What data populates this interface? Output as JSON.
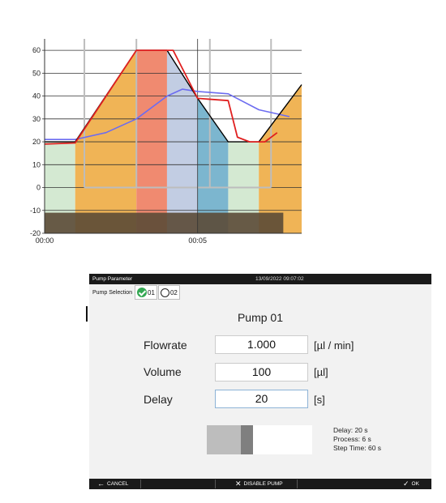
{
  "chart_data": {
    "type": "area",
    "x_tick_labels": [
      "00:00",
      "00:05"
    ],
    "y_ticks": [
      -20,
      -10,
      0,
      10,
      20,
      30,
      40,
      50,
      60
    ],
    "ylim": [
      -20,
      65
    ],
    "xlim": [
      0,
      8.4
    ],
    "grid": true,
    "setpoint_profile": {
      "x": [
        0,
        1,
        3,
        4,
        5,
        6,
        7,
        8.4
      ],
      "y": [
        20,
        20,
        60,
        60,
        39,
        20,
        20,
        45
      ]
    },
    "measured_red": {
      "x": [
        0,
        1,
        3,
        4.2,
        5,
        6,
        6.3,
        6.7,
        7.2,
        7.6
      ],
      "y": [
        19,
        19.5,
        60,
        60,
        39,
        38,
        22,
        20,
        20,
        24
      ]
    },
    "measured_blue": {
      "x": [
        0,
        1,
        2,
        3,
        4,
        4.5,
        5,
        6,
        7,
        8
      ],
      "y": [
        21,
        21,
        24,
        30,
        40,
        43,
        42,
        41,
        34,
        31
      ]
    },
    "phases": [
      {
        "from": 0,
        "to": 1,
        "color": "#d4e9d2"
      },
      {
        "from": 1,
        "to": 3,
        "color": "#f0b456"
      },
      {
        "from": 3,
        "to": 4,
        "color": "#f08a70"
      },
      {
        "from": 4,
        "to": 5,
        "color": "#c2cde3"
      },
      {
        "from": 5,
        "to": 6,
        "color": "#7cb6cf"
      },
      {
        "from": 6,
        "to": 7,
        "color": "#d4e9d2"
      },
      {
        "from": 7,
        "to": 8.4,
        "color": "#f0b456"
      }
    ],
    "colors": {
      "setpoint": "#000000",
      "red": "#e02020",
      "blue": "#6c6cf0",
      "bottom_band": "#5b4a36",
      "grid_light": "#bdbdbd"
    }
  },
  "dialog": {
    "title": "Pump Parameter",
    "timestamp": "13/09/2022 09:07:02",
    "pump_selection_label": "Pump Selection",
    "pump_options": [
      {
        "label": "01",
        "selected": true
      },
      {
        "label": "02",
        "selected": false
      }
    ],
    "pump_title": "Pump 01",
    "flowrate": {
      "label": "Flowrate",
      "value": "1.000",
      "unit": "[µl / min]"
    },
    "volume": {
      "label": "Volume",
      "value": "100",
      "unit": "[µl]"
    },
    "delay": {
      "label": "Delay",
      "value": "20",
      "unit": "[s]"
    },
    "info": {
      "delay": "Delay: 20 s",
      "process": "Process: 6 s",
      "step_time": "Step Time: 60 s"
    },
    "buttons": {
      "cancel": "CANCEL",
      "disable": "DISABLE PUMP",
      "ok": "OK"
    }
  }
}
